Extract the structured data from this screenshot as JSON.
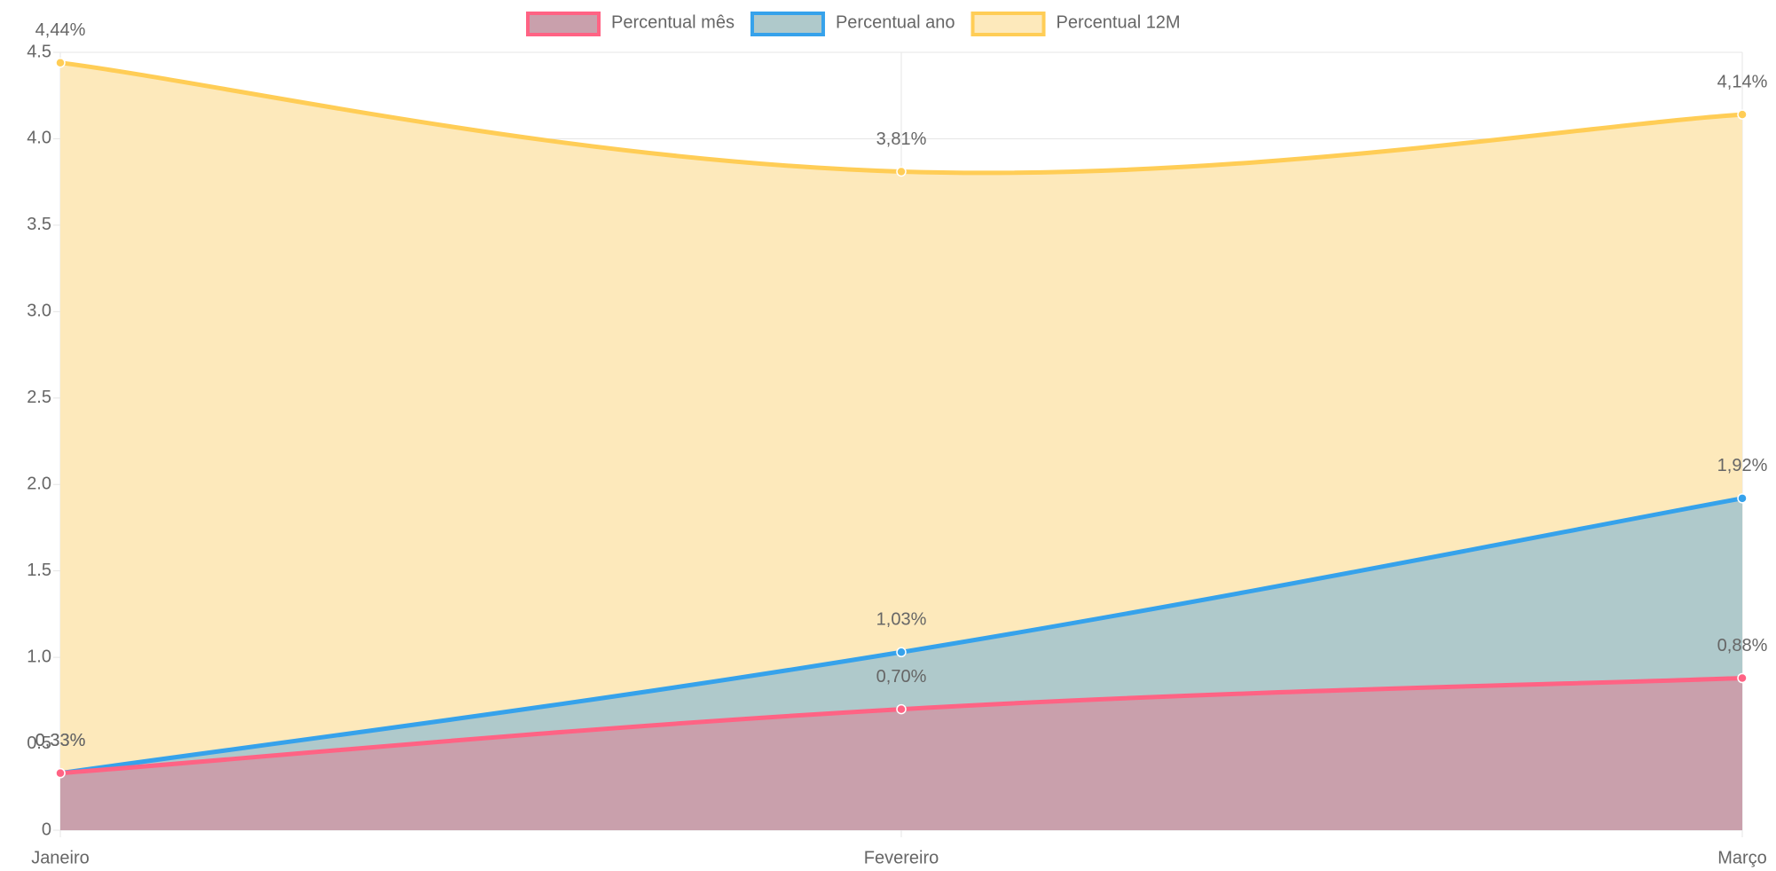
{
  "chart_data": {
    "type": "line",
    "categories": [
      "Janeiro",
      "Fevereiro",
      "Março"
    ],
    "series": [
      {
        "name": "Percentual mês",
        "color": "#ff6384",
        "fill_color": "#c9a0ac",
        "values": [
          0.33,
          0.7,
          0.88
        ],
        "value_labels": [
          "0,33%",
          "0,70%",
          "0,88%"
        ]
      },
      {
        "name": "Percentual ano",
        "color": "#36a2eb",
        "fill_color": "#afc9cb",
        "values": [
          0.33,
          1.03,
          1.92
        ],
        "value_labels": [
          "0,33%",
          "1,03%",
          "1,92%"
        ]
      },
      {
        "name": "Percentual 12M",
        "color": "#ffcd56",
        "fill_color": "#fde9bb",
        "values": [
          4.44,
          3.81,
          4.14
        ],
        "value_labels": [
          "4,44%",
          "3,81%",
          "4,14%"
        ]
      }
    ],
    "ylim": [
      0,
      4.5
    ],
    "yticks": [
      0,
      0.5,
      {
        "value": 1,
        "label": "1.0"
      },
      1.5,
      {
        "value": 2,
        "label": "2.0"
      },
      2.5,
      {
        "value": 3,
        "label": "3.0"
      },
      3.5,
      {
        "value": 4,
        "label": "4.0"
      },
      4.5
    ],
    "grid": true,
    "legend": "top"
  }
}
